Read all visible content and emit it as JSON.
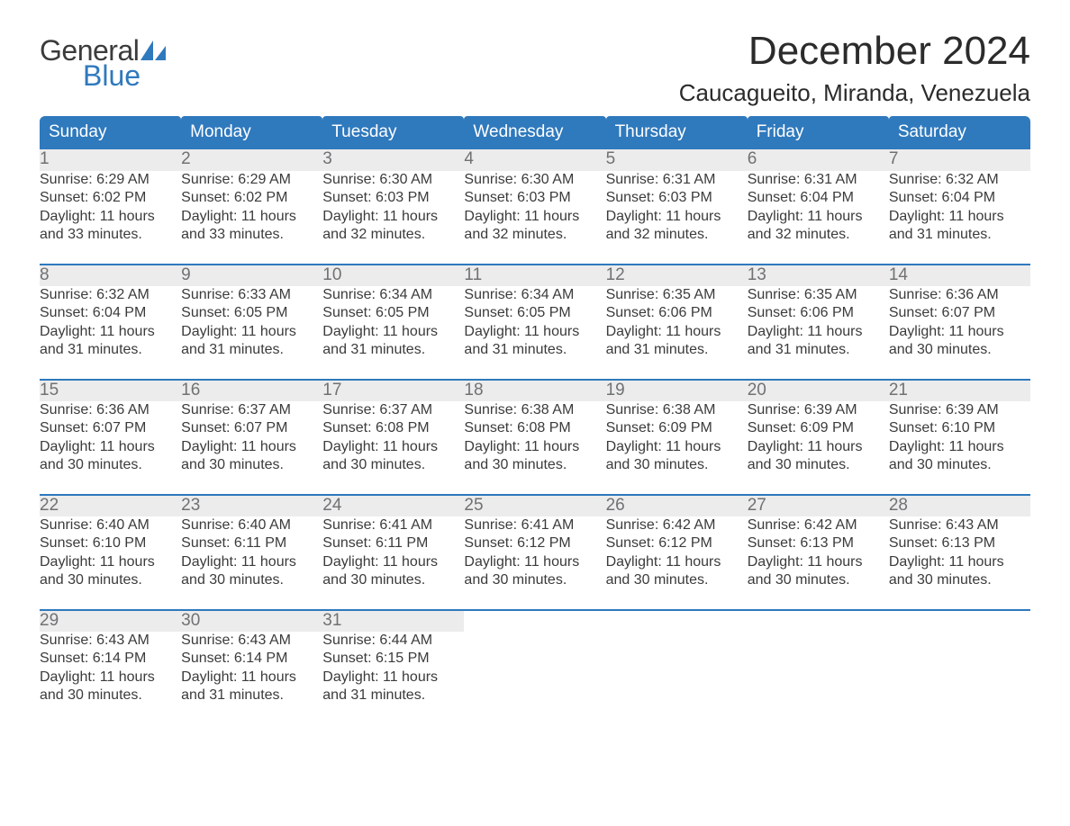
{
  "logo": {
    "general": "General",
    "blue": "Blue"
  },
  "title": {
    "month": "December 2024",
    "location": "Caucagueito, Miranda, Venezuela"
  },
  "weekdays": [
    "Sunday",
    "Monday",
    "Tuesday",
    "Wednesday",
    "Thursday",
    "Friday",
    "Saturday"
  ],
  "colors": {
    "header_bg": "#2f79bd",
    "header_text": "#ffffff",
    "daynum_bg": "#ececec",
    "daynum_text": "#6f7173",
    "body_text": "#3b3b3b",
    "rule": "#2f79bd",
    "logo_blue": "#2f79bd",
    "background": "#ffffff"
  },
  "typography": {
    "month_fontsize": 44,
    "location_fontsize": 26,
    "weekday_fontsize": 19,
    "daynum_fontsize": 19,
    "detail_fontsize": 16,
    "font_family": "Arial"
  },
  "layout": {
    "columns": 7,
    "rows": 5,
    "start_weekday_index": 0
  },
  "days": [
    {
      "n": 1,
      "sunrise": "6:29 AM",
      "sunset": "6:02 PM",
      "daylight_h": 11,
      "daylight_m": 33
    },
    {
      "n": 2,
      "sunrise": "6:29 AM",
      "sunset": "6:02 PM",
      "daylight_h": 11,
      "daylight_m": 33
    },
    {
      "n": 3,
      "sunrise": "6:30 AM",
      "sunset": "6:03 PM",
      "daylight_h": 11,
      "daylight_m": 32
    },
    {
      "n": 4,
      "sunrise": "6:30 AM",
      "sunset": "6:03 PM",
      "daylight_h": 11,
      "daylight_m": 32
    },
    {
      "n": 5,
      "sunrise": "6:31 AM",
      "sunset": "6:03 PM",
      "daylight_h": 11,
      "daylight_m": 32
    },
    {
      "n": 6,
      "sunrise": "6:31 AM",
      "sunset": "6:04 PM",
      "daylight_h": 11,
      "daylight_m": 32
    },
    {
      "n": 7,
      "sunrise": "6:32 AM",
      "sunset": "6:04 PM",
      "daylight_h": 11,
      "daylight_m": 31
    },
    {
      "n": 8,
      "sunrise": "6:32 AM",
      "sunset": "6:04 PM",
      "daylight_h": 11,
      "daylight_m": 31
    },
    {
      "n": 9,
      "sunrise": "6:33 AM",
      "sunset": "6:05 PM",
      "daylight_h": 11,
      "daylight_m": 31
    },
    {
      "n": 10,
      "sunrise": "6:34 AM",
      "sunset": "6:05 PM",
      "daylight_h": 11,
      "daylight_m": 31
    },
    {
      "n": 11,
      "sunrise": "6:34 AM",
      "sunset": "6:05 PM",
      "daylight_h": 11,
      "daylight_m": 31
    },
    {
      "n": 12,
      "sunrise": "6:35 AM",
      "sunset": "6:06 PM",
      "daylight_h": 11,
      "daylight_m": 31
    },
    {
      "n": 13,
      "sunrise": "6:35 AM",
      "sunset": "6:06 PM",
      "daylight_h": 11,
      "daylight_m": 31
    },
    {
      "n": 14,
      "sunrise": "6:36 AM",
      "sunset": "6:07 PM",
      "daylight_h": 11,
      "daylight_m": 30
    },
    {
      "n": 15,
      "sunrise": "6:36 AM",
      "sunset": "6:07 PM",
      "daylight_h": 11,
      "daylight_m": 30
    },
    {
      "n": 16,
      "sunrise": "6:37 AM",
      "sunset": "6:07 PM",
      "daylight_h": 11,
      "daylight_m": 30
    },
    {
      "n": 17,
      "sunrise": "6:37 AM",
      "sunset": "6:08 PM",
      "daylight_h": 11,
      "daylight_m": 30
    },
    {
      "n": 18,
      "sunrise": "6:38 AM",
      "sunset": "6:08 PM",
      "daylight_h": 11,
      "daylight_m": 30
    },
    {
      "n": 19,
      "sunrise": "6:38 AM",
      "sunset": "6:09 PM",
      "daylight_h": 11,
      "daylight_m": 30
    },
    {
      "n": 20,
      "sunrise": "6:39 AM",
      "sunset": "6:09 PM",
      "daylight_h": 11,
      "daylight_m": 30
    },
    {
      "n": 21,
      "sunrise": "6:39 AM",
      "sunset": "6:10 PM",
      "daylight_h": 11,
      "daylight_m": 30
    },
    {
      "n": 22,
      "sunrise": "6:40 AM",
      "sunset": "6:10 PM",
      "daylight_h": 11,
      "daylight_m": 30
    },
    {
      "n": 23,
      "sunrise": "6:40 AM",
      "sunset": "6:11 PM",
      "daylight_h": 11,
      "daylight_m": 30
    },
    {
      "n": 24,
      "sunrise": "6:41 AM",
      "sunset": "6:11 PM",
      "daylight_h": 11,
      "daylight_m": 30
    },
    {
      "n": 25,
      "sunrise": "6:41 AM",
      "sunset": "6:12 PM",
      "daylight_h": 11,
      "daylight_m": 30
    },
    {
      "n": 26,
      "sunrise": "6:42 AM",
      "sunset": "6:12 PM",
      "daylight_h": 11,
      "daylight_m": 30
    },
    {
      "n": 27,
      "sunrise": "6:42 AM",
      "sunset": "6:13 PM",
      "daylight_h": 11,
      "daylight_m": 30
    },
    {
      "n": 28,
      "sunrise": "6:43 AM",
      "sunset": "6:13 PM",
      "daylight_h": 11,
      "daylight_m": 30
    },
    {
      "n": 29,
      "sunrise": "6:43 AM",
      "sunset": "6:14 PM",
      "daylight_h": 11,
      "daylight_m": 30
    },
    {
      "n": 30,
      "sunrise": "6:43 AM",
      "sunset": "6:14 PM",
      "daylight_h": 11,
      "daylight_m": 31
    },
    {
      "n": 31,
      "sunrise": "6:44 AM",
      "sunset": "6:15 PM",
      "daylight_h": 11,
      "daylight_m": 31
    }
  ],
  "labels": {
    "sunrise": "Sunrise",
    "sunset": "Sunset",
    "daylight": "Daylight",
    "hours": "hours",
    "and": "and",
    "minutes": "minutes."
  }
}
